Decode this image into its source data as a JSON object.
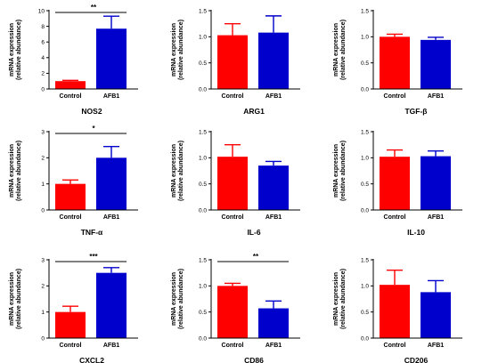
{
  "chart_data": [
    {
      "type": "bar",
      "title": "NOS2",
      "ylabel": [
        "mRNA expression",
        "(relative abundance)"
      ],
      "categories": [
        "Control",
        "AFB1"
      ],
      "values": [
        1.0,
        7.7
      ],
      "errors": [
        0.1,
        1.6
      ],
      "colors": [
        "#ff0000",
        "#0000cc"
      ],
      "ylim": [
        0,
        10
      ],
      "yticks": [
        "0",
        "2",
        "4",
        "6",
        "8",
        "10"
      ],
      "yticks_values": [
        0,
        2,
        4,
        6,
        8,
        10
      ],
      "significance": "**"
    },
    {
      "type": "bar",
      "title": "ARG1",
      "ylabel": [
        "mRNA expression",
        "(relative abundance)"
      ],
      "categories": [
        "Control",
        "AFB1"
      ],
      "values": [
        1.03,
        1.08
      ],
      "errors": [
        0.22,
        0.32
      ],
      "colors": [
        "#ff0000",
        "#0000cc"
      ],
      "ylim": [
        0,
        1.5
      ],
      "yticks": [
        "0.0",
        "0.5",
        "1.0",
        "1.5"
      ],
      "yticks_values": [
        0,
        0.5,
        1.0,
        1.5
      ],
      "significance": ""
    },
    {
      "type": "bar",
      "title": "TGF-β",
      "ylabel": [
        "mRNA expression",
        "(relative abundance)"
      ],
      "categories": [
        "Control",
        "AFB1"
      ],
      "values": [
        1.0,
        0.94
      ],
      "errors": [
        0.05,
        0.05
      ],
      "colors": [
        "#ff0000",
        "#0000cc"
      ],
      "ylim": [
        0,
        1.5
      ],
      "yticks": [
        "0.0",
        "0.5",
        "1.0",
        "1.5"
      ],
      "yticks_values": [
        0,
        0.5,
        1.0,
        1.5
      ],
      "significance": ""
    },
    {
      "type": "bar",
      "title": "TNF-α",
      "ylabel": [
        "mRNA expression",
        "(relative abundance)"
      ],
      "categories": [
        "Control",
        "AFB1"
      ],
      "values": [
        1.0,
        2.0
      ],
      "errors": [
        0.15,
        0.43
      ],
      "colors": [
        "#ff0000",
        "#0000cc"
      ],
      "ylim": [
        0,
        3
      ],
      "yticks": [
        "0",
        "1",
        "2",
        "3"
      ],
      "yticks_values": [
        0,
        1,
        2,
        3
      ],
      "significance": "*"
    },
    {
      "type": "bar",
      "title": "IL-6",
      "ylabel": [
        "mRNA expression",
        "(relative abundance)"
      ],
      "categories": [
        "Control",
        "AFB1"
      ],
      "values": [
        1.02,
        0.85
      ],
      "errors": [
        0.23,
        0.08
      ],
      "colors": [
        "#ff0000",
        "#0000cc"
      ],
      "ylim": [
        0,
        1.5
      ],
      "yticks": [
        "0.0",
        "0.5",
        "1.0",
        "1.5"
      ],
      "yticks_values": [
        0,
        0.5,
        1.0,
        1.5
      ],
      "significance": ""
    },
    {
      "type": "bar",
      "title": "IL-10",
      "ylabel": [
        "mRNA expression",
        "(relative abundance)"
      ],
      "categories": [
        "Control",
        "AFB1"
      ],
      "values": [
        1.02,
        1.03
      ],
      "errors": [
        0.13,
        0.1
      ],
      "colors": [
        "#ff0000",
        "#0000cc"
      ],
      "ylim": [
        0,
        1.5
      ],
      "yticks": [
        "0.0",
        "0.5",
        "1.0",
        "1.5"
      ],
      "yticks_values": [
        0,
        0.5,
        1.0,
        1.5
      ],
      "significance": ""
    },
    {
      "type": "bar",
      "title": "CXCL2",
      "ylabel": [
        "mRNA expression",
        "(relative abundance)"
      ],
      "categories": [
        "Control",
        "AFB1"
      ],
      "values": [
        1.0,
        2.5
      ],
      "errors": [
        0.22,
        0.2
      ],
      "colors": [
        "#ff0000",
        "#0000cc"
      ],
      "ylim": [
        0,
        3
      ],
      "yticks": [
        "0",
        "1",
        "2",
        "3"
      ],
      "yticks_values": [
        0,
        1,
        2,
        3
      ],
      "significance": "***"
    },
    {
      "type": "bar",
      "title": "CD86",
      "ylabel": [
        "mRNA expression",
        "(relative abundance)"
      ],
      "categories": [
        "Control",
        "AFB1"
      ],
      "values": [
        1.0,
        0.57
      ],
      "errors": [
        0.05,
        0.14
      ],
      "colors": [
        "#ff0000",
        "#0000cc"
      ],
      "ylim": [
        0,
        1.5
      ],
      "yticks": [
        "0.0",
        "0.5",
        "1.0",
        "1.5"
      ],
      "yticks_values": [
        0,
        0.5,
        1.0,
        1.5
      ],
      "significance": "**"
    },
    {
      "type": "bar",
      "title": "CD206",
      "ylabel": [
        "mRNA expression",
        "(relative abundance)"
      ],
      "categories": [
        "Control",
        "AFB1"
      ],
      "values": [
        1.02,
        0.88
      ],
      "errors": [
        0.28,
        0.22
      ],
      "colors": [
        "#ff0000",
        "#0000cc"
      ],
      "ylim": [
        0,
        1.5
      ],
      "yticks": [
        "0.0",
        "0.5",
        "1.0",
        "1.5"
      ],
      "yticks_values": [
        0,
        0.5,
        1.0,
        1.5
      ],
      "significance": ""
    }
  ]
}
